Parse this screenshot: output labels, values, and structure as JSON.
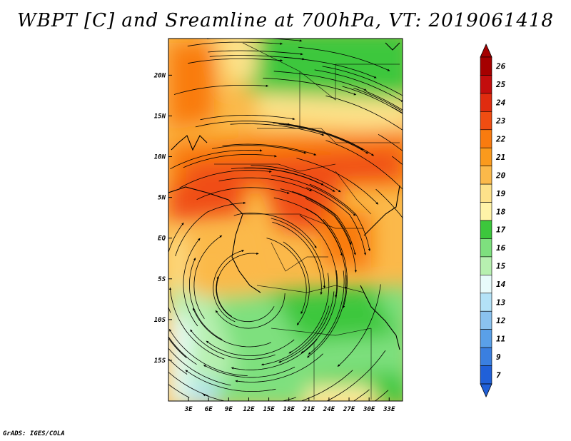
{
  "title": "WBPT [C] and Sreamline at 700hPa, VT: 2019061418",
  "credit": "GrADS: IGES/COLA",
  "chart_data": {
    "type": "heatmap",
    "variable": "Wet-bulb potential temperature with streamlines",
    "level": "700hPa",
    "valid_time": "2019061418",
    "x_axis": {
      "labels": [
        "3E",
        "6E",
        "9E",
        "12E",
        "15E",
        "18E",
        "21E",
        "24E",
        "27E",
        "30E",
        "33E"
      ],
      "range": [
        0,
        35
      ]
    },
    "y_axis": {
      "labels": [
        "20N",
        "15N",
        "10N",
        "5N",
        "EQ",
        "5S",
        "10S",
        "15S"
      ],
      "range": [
        -20,
        24.5
      ]
    },
    "colorbar": {
      "labels": [
        "26",
        "25",
        "24",
        "23",
        "22",
        "21",
        "20",
        "19",
        "18",
        "17",
        "16",
        "15",
        "14",
        "13",
        "12",
        "11",
        "9",
        "7"
      ],
      "colors": [
        "#a50000",
        "#c30d0d",
        "#e02c0f",
        "#f04d12",
        "#f97b0f",
        "#fa9a1d",
        "#fbb94a",
        "#fde28a",
        "#fff3a8",
        "#3cc73c",
        "#7ee07e",
        "#b7f0b0",
        "#e8fbfb",
        "#b3e2f7",
        "#8ac2ef",
        "#5aa0e8",
        "#3a7fe0",
        "#2060d8"
      ],
      "extend": "both"
    },
    "grid": false
  }
}
